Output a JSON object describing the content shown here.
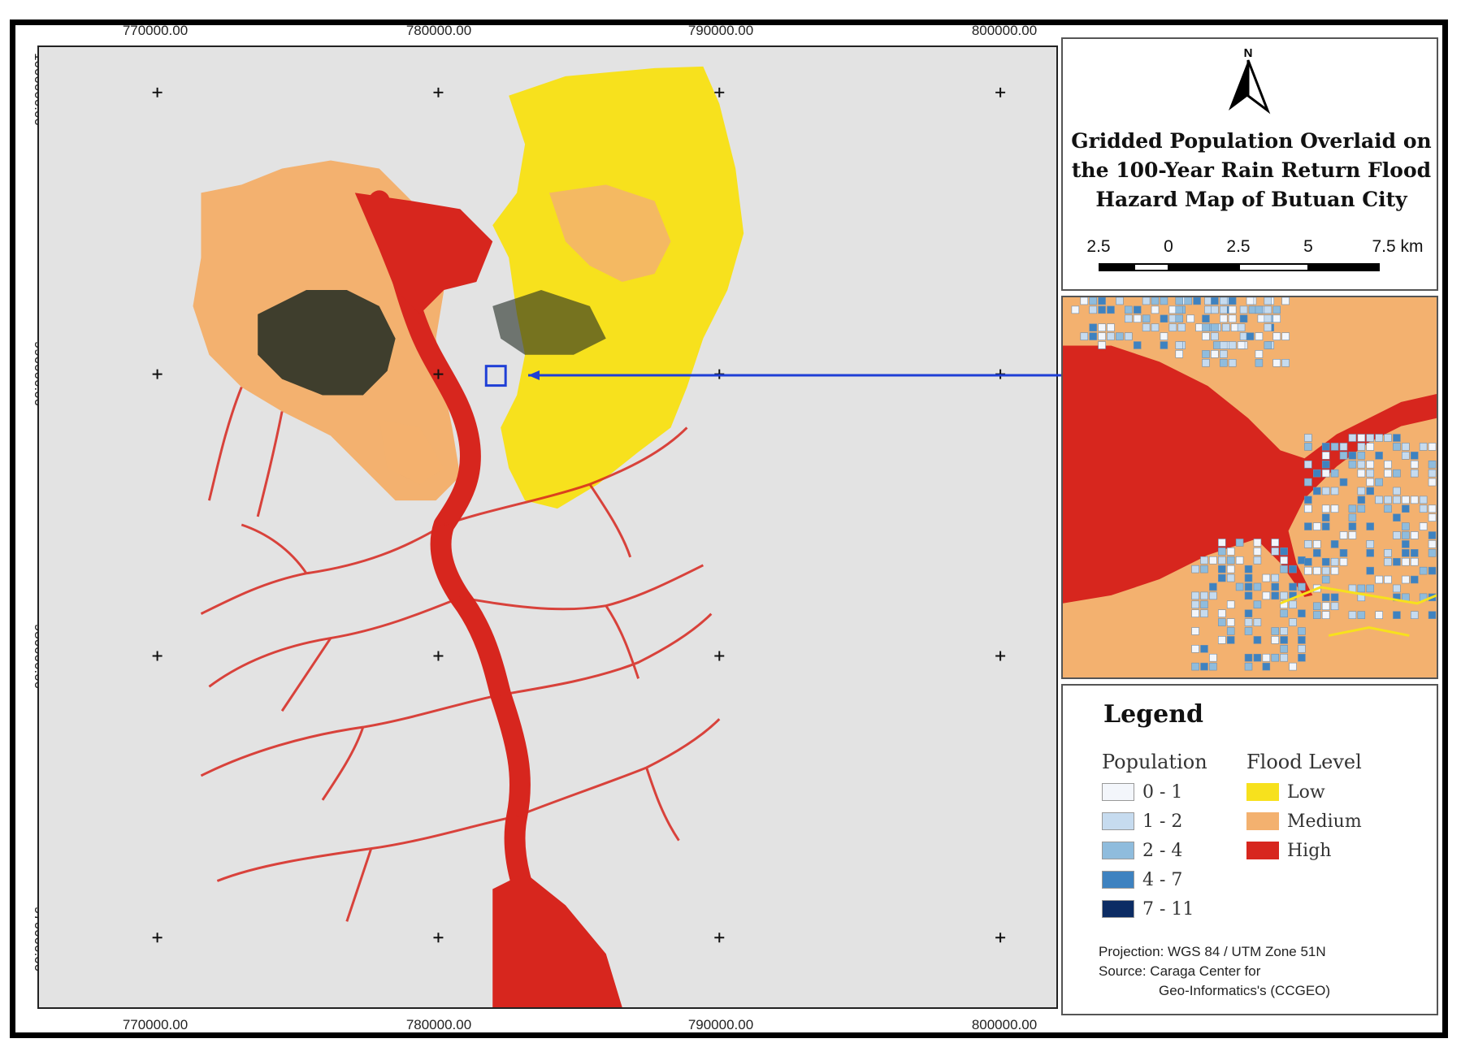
{
  "map": {
    "x_ticks": [
      "770000.00",
      "780000.00",
      "790000.00",
      "800000.00"
    ],
    "y_ticks": [
      "1000000.00",
      "990000.00",
      "980000.00",
      "970000.00"
    ],
    "colors": {
      "background": "#e3e3e3",
      "flood_low": "#f7e11d",
      "flood_medium": "#f3b16f",
      "flood_high": "#d7261e",
      "population_high": "#1f2a22",
      "inset_link": "#1f3fd6"
    }
  },
  "title_panel": {
    "north_label": "N",
    "title_line1": "Gridded Population Overlaid on",
    "title_line2": "the 100-Year Rain Return Flood",
    "title_line3": "Hazard Map of Butuan City",
    "scale_labels": [
      "2.5",
      "0",
      "2.5",
      "5",
      "7.5 km"
    ]
  },
  "legend": {
    "title": "Legend",
    "population_heading": "Population",
    "flood_heading": "Flood Level",
    "population": [
      {
        "label": "0 - 1",
        "color": "#f3f6fb"
      },
      {
        "label": "1 - 2",
        "color": "#c6dbef"
      },
      {
        "label": "2 - 4",
        "color": "#8fbcdd"
      },
      {
        "label": "4 - 7",
        "color": "#3e82c0"
      },
      {
        "label": "7 - 11",
        "color": "#0c2c64"
      }
    ],
    "flood": [
      {
        "label": "Low",
        "color": "#f7e11d"
      },
      {
        "label": "Medium",
        "color": "#f3b16f"
      },
      {
        "label": "High",
        "color": "#d7261e"
      }
    ],
    "projection": "Projection: WGS 84 / UTM Zone 51N",
    "source_line1": "Source: Caraga Center for",
    "source_line2": "Geo-Informatics's (CCGEO)"
  }
}
